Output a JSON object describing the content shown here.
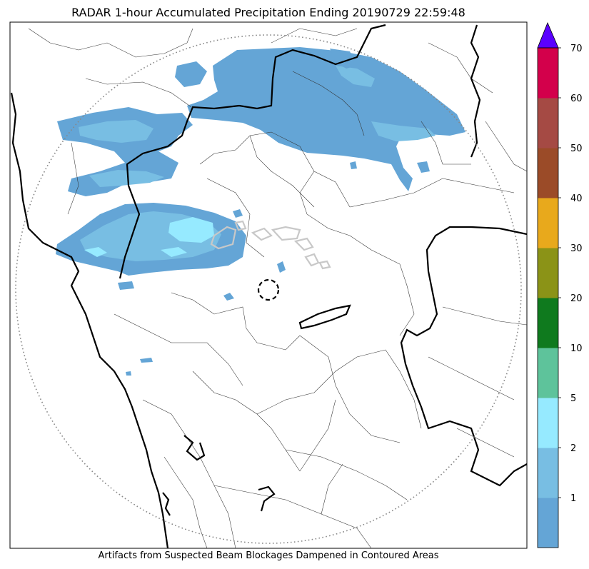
{
  "title": "RADAR 1-hour Accumulated Precipitation Ending 20190729 22:59:48",
  "footer_note": "Artifacts from Suspected Beam Blockages Dampened in Contoured Areas",
  "colorbar": {
    "min": 0,
    "max": 70,
    "extend": "max",
    "extend_color": "#5a00ff",
    "bins": [
      {
        "from": 0,
        "to": 1,
        "color": "#64a5d6"
      },
      {
        "from": 1,
        "to": 2,
        "color": "#78bee3"
      },
      {
        "from": 2,
        "to": 5,
        "color": "#96eaff"
      },
      {
        "from": 5,
        "to": 10,
        "color": "#5ec39b"
      },
      {
        "from": 10,
        "to": 20,
        "color": "#0f7a1e"
      },
      {
        "from": 20,
        "to": 30,
        "color": "#8b9317"
      },
      {
        "from": 30,
        "to": 40,
        "color": "#e8a91c"
      },
      {
        "from": 40,
        "to": 50,
        "color": "#9b4b28"
      },
      {
        "from": 50,
        "to": 60,
        "color": "#a54a44"
      },
      {
        "from": 60,
        "to": 70,
        "color": "#d3004b"
      }
    ],
    "tick_labels": [
      "1",
      "2",
      "5",
      "10",
      "20",
      "30",
      "40",
      "50",
      "60",
      "70"
    ]
  },
  "map": {
    "range_ring": "dotted",
    "radar_site_marker": "dashed-circle",
    "precip_colors": {
      "light": "#64a5d6",
      "medium": "#78bee3",
      "heavy": "#96eaff",
      "peak": "#5ec39b"
    }
  }
}
